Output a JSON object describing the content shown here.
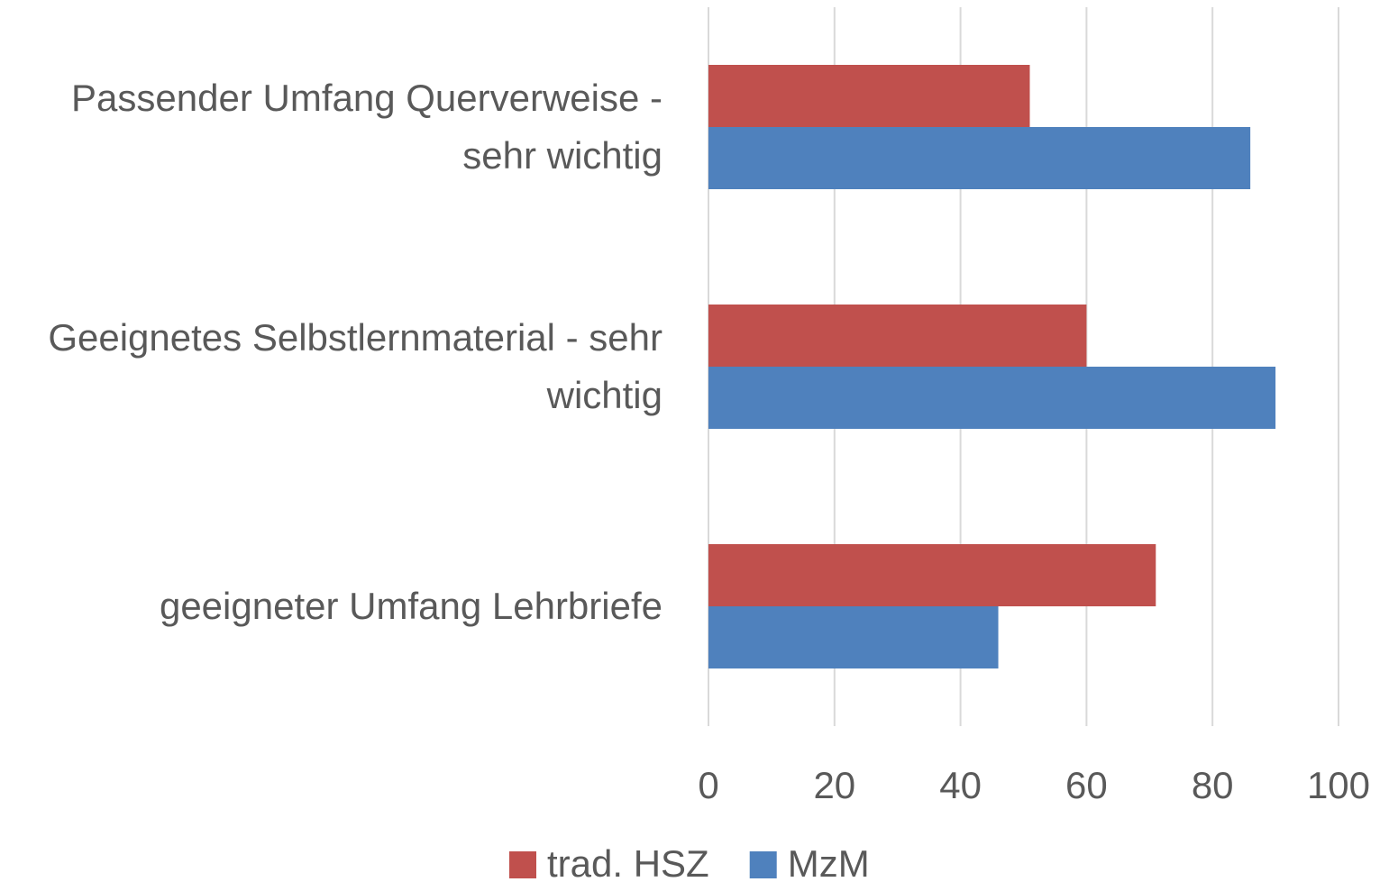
{
  "chart_data": {
    "type": "barh",
    "categories": [
      "Passender Umfang Querverweise - sehr wichtig",
      "Geeignetes Selbstlernmaterial - sehr wichtig",
      "geeigneter Umfang Lehrbriefe"
    ],
    "series": [
      {
        "name": "trad. HSZ",
        "color": "#c0504d",
        "values": [
          51,
          60,
          71
        ]
      },
      {
        "name": "MzM",
        "color": "#4f81bd",
        "values": [
          86,
          90,
          46
        ]
      }
    ],
    "xlim": [
      0,
      100
    ],
    "xticks": [
      0,
      20,
      40,
      60,
      80,
      100
    ],
    "grid": true,
    "legend": "bottom"
  }
}
